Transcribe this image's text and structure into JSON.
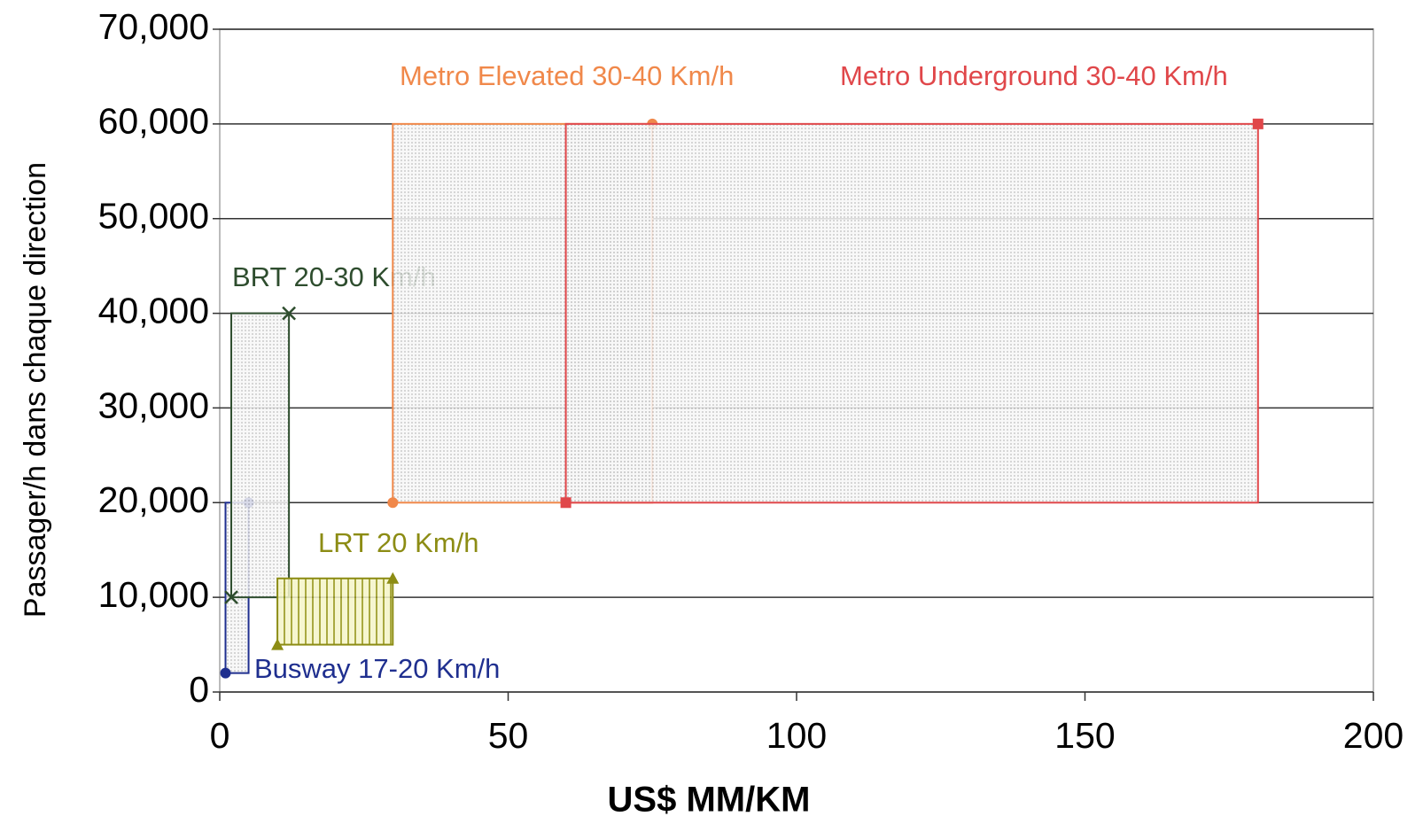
{
  "chart_data": {
    "type": "range-box",
    "x_label": "US$ MM/KM",
    "y_label": "Passager/h dans chaque direction",
    "xlim": [
      0,
      200
    ],
    "xticks": [
      0,
      50,
      100,
      150,
      200
    ],
    "ylim": [
      0,
      70000
    ],
    "yticks": [
      0,
      {
        "value": 10000,
        "label": "10,000"
      },
      {
        "value": 20000,
        "label": "20,000"
      },
      {
        "value": 30000,
        "label": "30,000"
      },
      {
        "value": 40000,
        "label": "40,000"
      },
      {
        "value": 50000,
        "label": "50,000"
      },
      {
        "value": 60000,
        "label": "60,000"
      },
      {
        "value": 70000,
        "label": "70,000"
      }
    ],
    "grid": true,
    "series": [
      {
        "name": "Busway 17-20 Km/h",
        "color": "#1f2f8f",
        "marker": "circle",
        "x": [
          1,
          5
        ],
        "values": [
          2000,
          20000
        ]
      },
      {
        "name": "BRT 20-30 Km/h",
        "color": "#2e4d2e",
        "marker": "cross",
        "x": [
          2,
          12
        ],
        "values": [
          10000,
          40000
        ]
      },
      {
        "name": "LRT 20 Km/h",
        "color": "#8c8c14",
        "marker": "triangle",
        "x": [
          10,
          30
        ],
        "values": [
          5000,
          12000
        ]
      },
      {
        "name": "Metro Elevated 30-40 Km/h",
        "color": "#f0884a",
        "marker": "circle",
        "x": [
          30,
          75
        ],
        "values": [
          20000,
          60000
        ]
      },
      {
        "name": "Metro Underground 30-40 Km/h",
        "color": "#e0474a",
        "marker": "square",
        "x": [
          60,
          180
        ],
        "values": [
          20000,
          60000
        ]
      }
    ]
  }
}
